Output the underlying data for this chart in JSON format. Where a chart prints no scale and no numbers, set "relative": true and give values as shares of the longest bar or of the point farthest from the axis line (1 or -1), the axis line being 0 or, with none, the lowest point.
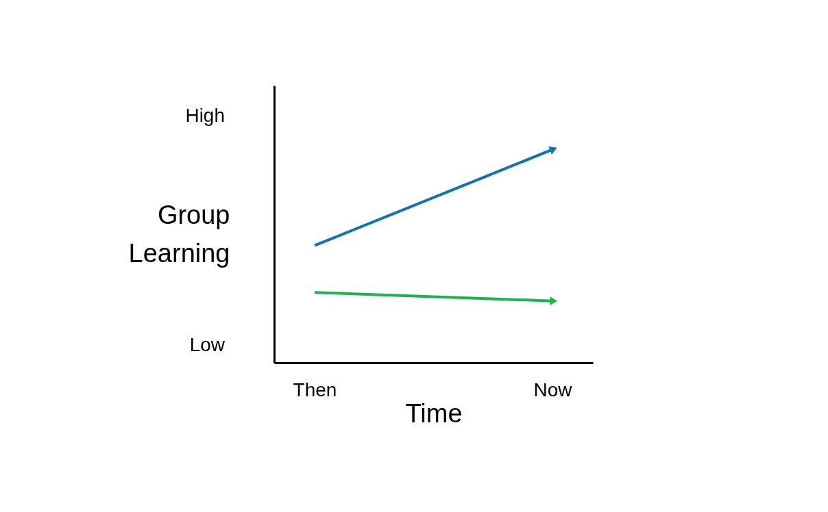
{
  "chart_data": {
    "type": "line",
    "relative": true,
    "xlabel": "Time",
    "ylabel": "Group Learning",
    "categories": [
      "Then",
      "Now"
    ],
    "series": [
      {
        "color": "#0f70c0",
        "values": [
          0.55,
          1
        ]
      },
      {
        "color": "#1fb050",
        "values": [
          0.33,
          0.29
        ]
      }
    ],
    "annotations": [
      "High",
      "Low"
    ],
    "grid": false,
    "line_style": "solid"
  }
}
